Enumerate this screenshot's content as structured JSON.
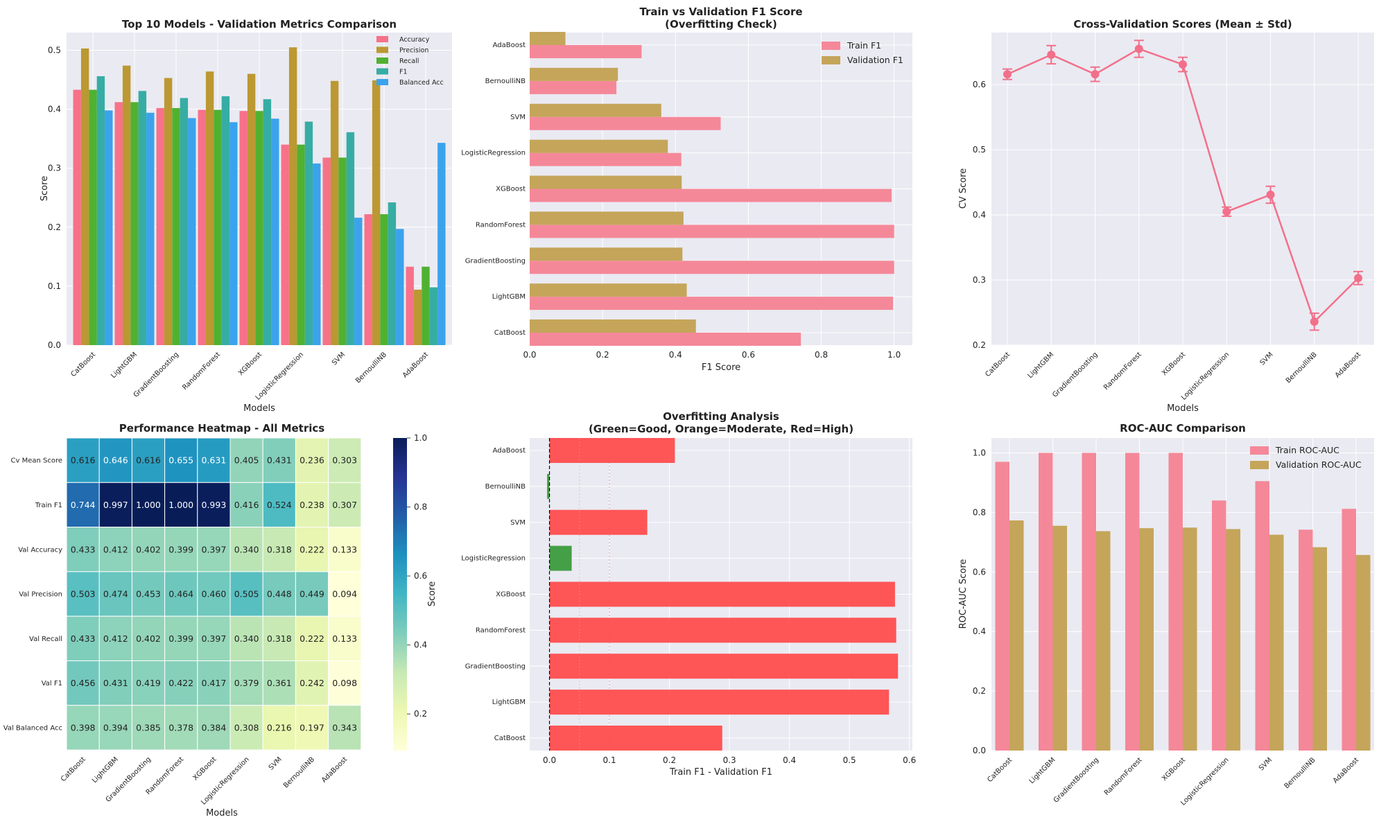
{
  "models": [
    "CatBoost",
    "LightGBM",
    "GradientBoosting",
    "RandomForest",
    "XGBoost",
    "LogisticRegression",
    "SVM",
    "BernoulliNB",
    "AdaBoost"
  ],
  "colors": {
    "pal5": [
      "#f77189",
      "#bb9832",
      "#50b131",
      "#36ada4",
      "#3ba3ec"
    ],
    "pal2": [
      "#f48899",
      "#c4a55a"
    ],
    "cv": "#f2708a",
    "red": "#ff4d4d",
    "green": "#3c9b3c",
    "orange": "#ffa64d",
    "panel_bg": "#eaeaf2"
  },
  "chart_data": [
    {
      "type": "bar",
      "title": "Top 10 Models - Validation Metrics Comparison",
      "xlabel": "Models",
      "ylabel": "Score",
      "ylim": [
        0,
        0.53
      ],
      "yticks": [
        "0.0",
        "0.1",
        "0.2",
        "0.3",
        "0.4",
        "0.5"
      ],
      "legend_position": "top-right",
      "categories": [
        "CatBoost",
        "LightGBM",
        "GradientBoosting",
        "RandomForest",
        "XGBoost",
        "LogisticRegression",
        "SVM",
        "BernoulliNB",
        "AdaBoost"
      ],
      "series": [
        {
          "name": "Accuracy",
          "values": [
            0.433,
            0.412,
            0.402,
            0.399,
            0.397,
            0.34,
            0.318,
            0.222,
            0.133
          ]
        },
        {
          "name": "Precision",
          "values": [
            0.503,
            0.474,
            0.453,
            0.464,
            0.46,
            0.505,
            0.448,
            0.449,
            0.094
          ]
        },
        {
          "name": "Recall",
          "values": [
            0.433,
            0.412,
            0.402,
            0.399,
            0.397,
            0.34,
            0.318,
            0.222,
            0.133
          ]
        },
        {
          "name": "F1",
          "values": [
            0.456,
            0.431,
            0.419,
            0.422,
            0.417,
            0.379,
            0.361,
            0.242,
            0.098
          ]
        },
        {
          "name": "Balanced Acc",
          "values": [
            0.398,
            0.394,
            0.385,
            0.378,
            0.384,
            0.308,
            0.216,
            0.197,
            0.343
          ]
        }
      ]
    },
    {
      "type": "bar",
      "orientation": "horizontal",
      "title": "Train vs Validation F1 Score",
      "subtitle": "(Overfitting Check)",
      "xlabel": "F1 Score",
      "xlim": [
        0,
        1.05
      ],
      "xticks": [
        "0.0",
        "0.2",
        "0.4",
        "0.6",
        "0.8",
        "1.0"
      ],
      "legend_position": "top-right",
      "categories": [
        "CatBoost",
        "LightGBM",
        "GradientBoosting",
        "RandomForest",
        "XGBoost",
        "LogisticRegression",
        "SVM",
        "BernoulliNB",
        "AdaBoost"
      ],
      "series": [
        {
          "name": "Train F1",
          "values": [
            0.744,
            0.997,
            1.0,
            1.0,
            0.993,
            0.416,
            0.524,
            0.238,
            0.307
          ]
        },
        {
          "name": "Validation F1",
          "values": [
            0.456,
            0.431,
            0.419,
            0.422,
            0.417,
            0.379,
            0.361,
            0.242,
            0.098
          ]
        }
      ]
    },
    {
      "type": "line",
      "title": "Cross-Validation Scores (Mean ± Std)",
      "xlabel": "Models",
      "ylabel": "CV Score",
      "ylim": [
        0.2,
        0.68
      ],
      "yticks": [
        "0.2",
        "0.3",
        "0.4",
        "0.5",
        "0.6"
      ],
      "categories": [
        "CatBoost",
        "LightGBM",
        "GradientBoosting",
        "RandomForest",
        "XGBoost",
        "LogisticRegression",
        "SVM",
        "BernoulliNB",
        "AdaBoost"
      ],
      "mean": [
        0.616,
        0.646,
        0.616,
        0.655,
        0.631,
        0.405,
        0.431,
        0.236,
        0.303
      ],
      "std": [
        0.008,
        0.014,
        0.011,
        0.013,
        0.011,
        0.007,
        0.013,
        0.013,
        0.01
      ]
    },
    {
      "type": "heatmap",
      "title": "Performance Heatmap - All Metrics",
      "xlabel": "Models",
      "colorbar_label": "Score",
      "colorbar_range": [
        0.094,
        1.0
      ],
      "colorbar_ticks": [
        "0.2",
        "0.4",
        "0.6",
        "0.8",
        "1.0"
      ],
      "columns": [
        "CatBoost",
        "LightGBM",
        "GradientBoosting",
        "RandomForest",
        "XGBoost",
        "LogisticRegression",
        "SVM",
        "BernoulliNB",
        "AdaBoost"
      ],
      "rows": [
        "Cv Mean Score",
        "Train F1",
        "Val Accuracy",
        "Val Precision",
        "Val Recall",
        "Val F1",
        "Val Balanced Acc"
      ],
      "values": [
        [
          0.616,
          0.646,
          0.616,
          0.655,
          0.631,
          0.405,
          0.431,
          0.236,
          0.303
        ],
        [
          0.744,
          0.997,
          1.0,
          1.0,
          0.993,
          0.416,
          0.524,
          0.238,
          0.307
        ],
        [
          0.433,
          0.412,
          0.402,
          0.399,
          0.397,
          0.34,
          0.318,
          0.222,
          0.133
        ],
        [
          0.503,
          0.474,
          0.453,
          0.464,
          0.46,
          0.505,
          0.448,
          0.449,
          0.094
        ],
        [
          0.433,
          0.412,
          0.402,
          0.399,
          0.397,
          0.34,
          0.318,
          0.222,
          0.133
        ],
        [
          0.456,
          0.431,
          0.419,
          0.422,
          0.417,
          0.379,
          0.361,
          0.242,
          0.098
        ],
        [
          0.398,
          0.394,
          0.385,
          0.378,
          0.384,
          0.308,
          0.216,
          0.197,
          0.343
        ]
      ],
      "labels": [
        [
          "0.616",
          "0.646",
          "0.616",
          "0.655",
          "0.631",
          "0.405",
          "0.431",
          "0.236",
          "0.303"
        ],
        [
          "0.744",
          "0.997",
          "1.000",
          "1.000",
          "0.993",
          "0.416",
          "0.524",
          "0.238",
          "0.307"
        ],
        [
          "0.433",
          "0.412",
          "0.402",
          "0.399",
          "0.397",
          "0.340",
          "0.318",
          "0.222",
          "0.133"
        ],
        [
          "0.503",
          "0.474",
          "0.453",
          "0.464",
          "0.460",
          "0.505",
          "0.448",
          "0.449",
          "0.094"
        ],
        [
          "0.433",
          "0.412",
          "0.402",
          "0.399",
          "0.397",
          "0.340",
          "0.318",
          "0.222",
          "0.133"
        ],
        [
          "0.456",
          "0.431",
          "0.419",
          "0.422",
          "0.417",
          "0.379",
          "0.361",
          "0.242",
          "0.098"
        ],
        [
          "0.398",
          "0.394",
          "0.385",
          "0.378",
          "0.384",
          "0.308",
          "0.216",
          "0.197",
          "0.343"
        ]
      ]
    },
    {
      "type": "bar",
      "orientation": "horizontal",
      "title": "Overfitting Analysis",
      "subtitle": "(Green=Good, Orange=Moderate, Red=High)",
      "xlabel": "Train F1 - Validation F1",
      "xlim": [
        -0.033,
        0.605
      ],
      "xticks": [
        "0.0",
        "0.1",
        "0.2",
        "0.3",
        "0.4",
        "0.5",
        "0.6"
      ],
      "categories": [
        "CatBoost",
        "LightGBM",
        "GradientBoosting",
        "RandomForest",
        "XGBoost",
        "LogisticRegression",
        "SVM",
        "BernoulliNB",
        "AdaBoost"
      ],
      "values": [
        0.288,
        0.566,
        0.581,
        0.578,
        0.576,
        0.037,
        0.163,
        -0.004,
        0.209
      ],
      "bar_colors": [
        "red",
        "red",
        "red",
        "red",
        "red",
        "green",
        "red",
        "green",
        "red"
      ],
      "reference_lines": [
        0.0,
        0.05,
        0.1
      ]
    },
    {
      "type": "bar",
      "title": "ROC-AUC Comparison",
      "ylabel": "ROC-AUC Score",
      "ylim": [
        0,
        1.05
      ],
      "yticks": [
        "0.0",
        "0.2",
        "0.4",
        "0.6",
        "0.8",
        "1.0"
      ],
      "legend_position": "top-right",
      "categories": [
        "CatBoost",
        "LightGBM",
        "GradientBoosting",
        "RandomForest",
        "XGBoost",
        "LogisticRegression",
        "SVM",
        "BernoulliNB",
        "AdaBoost"
      ],
      "series": [
        {
          "name": "Train ROC-AUC",
          "values": [
            0.97,
            1.0,
            1.0,
            1.0,
            1.0,
            0.84,
            0.905,
            0.742,
            0.812
          ]
        },
        {
          "name": "Validation ROC-AUC",
          "values": [
            0.773,
            0.755,
            0.737,
            0.747,
            0.749,
            0.744,
            0.725,
            0.683,
            0.657
          ]
        }
      ]
    }
  ]
}
